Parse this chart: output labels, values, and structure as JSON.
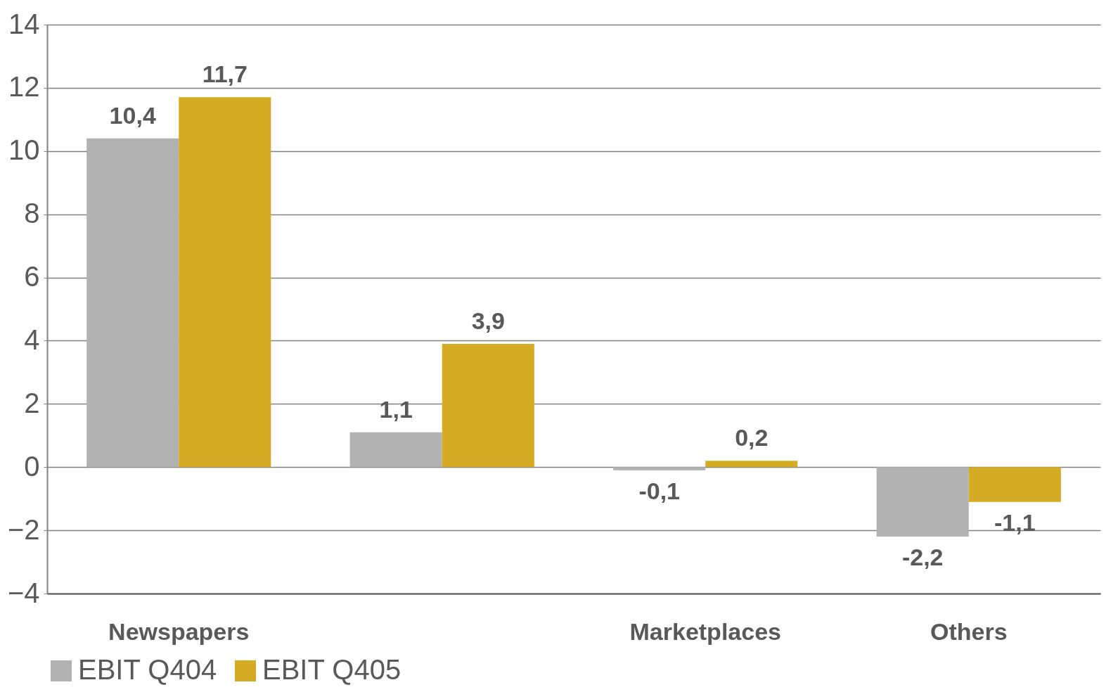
{
  "chart_data": {
    "type": "bar",
    "categories": [
      "Newspapers",
      null,
      "Marketplaces",
      "Others"
    ],
    "series": [
      {
        "name": "EBIT Q404",
        "color": "#b2b2b2",
        "values": [
          10.4,
          1.1,
          -0.1,
          -2.2
        ],
        "value_labels": [
          "10,4",
          "1,1",
          "-0,1",
          "-2,2"
        ]
      },
      {
        "name": "EBIT Q405",
        "color": "#d4ab22",
        "values": [
          11.7,
          3.9,
          0.2,
          -1.1
        ],
        "value_labels": [
          "11,7",
          "3,9",
          "0,2",
          "-1,1"
        ]
      }
    ],
    "ylim": [
      -4,
      14
    ],
    "yticks": [
      -4,
      -2,
      0,
      2,
      4,
      6,
      8,
      10,
      12,
      14
    ],
    "grid": "y",
    "legend": "bottom"
  }
}
